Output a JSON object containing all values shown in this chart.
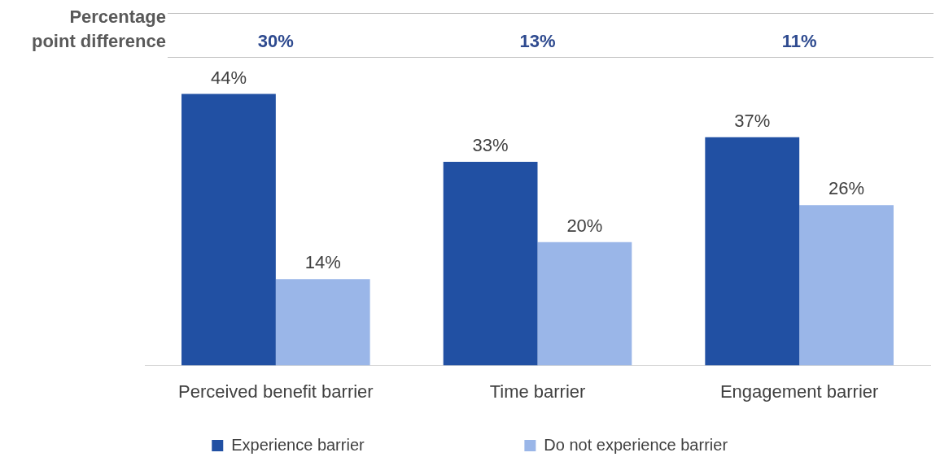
{
  "chart_data": {
    "type": "bar",
    "categories": [
      "Perceived benefit barrier",
      "Time barrier",
      "Engagement barrier"
    ],
    "series": [
      {
        "name": "Experience barrier",
        "color": "#2150a3",
        "values": [
          44,
          33,
          37
        ],
        "value_labels": [
          "44%",
          "33%",
          "37%"
        ]
      },
      {
        "name": "Do not experience barrier",
        "color": "#9ab6e8",
        "values": [
          14,
          20,
          26
        ],
        "value_labels": [
          "14%",
          "20%",
          "26%"
        ]
      }
    ],
    "annotations": [
      "Percentage point difference",
      "30%",
      "13%",
      "11%"
    ],
    "legend": "bottom",
    "grid": false
  }
}
